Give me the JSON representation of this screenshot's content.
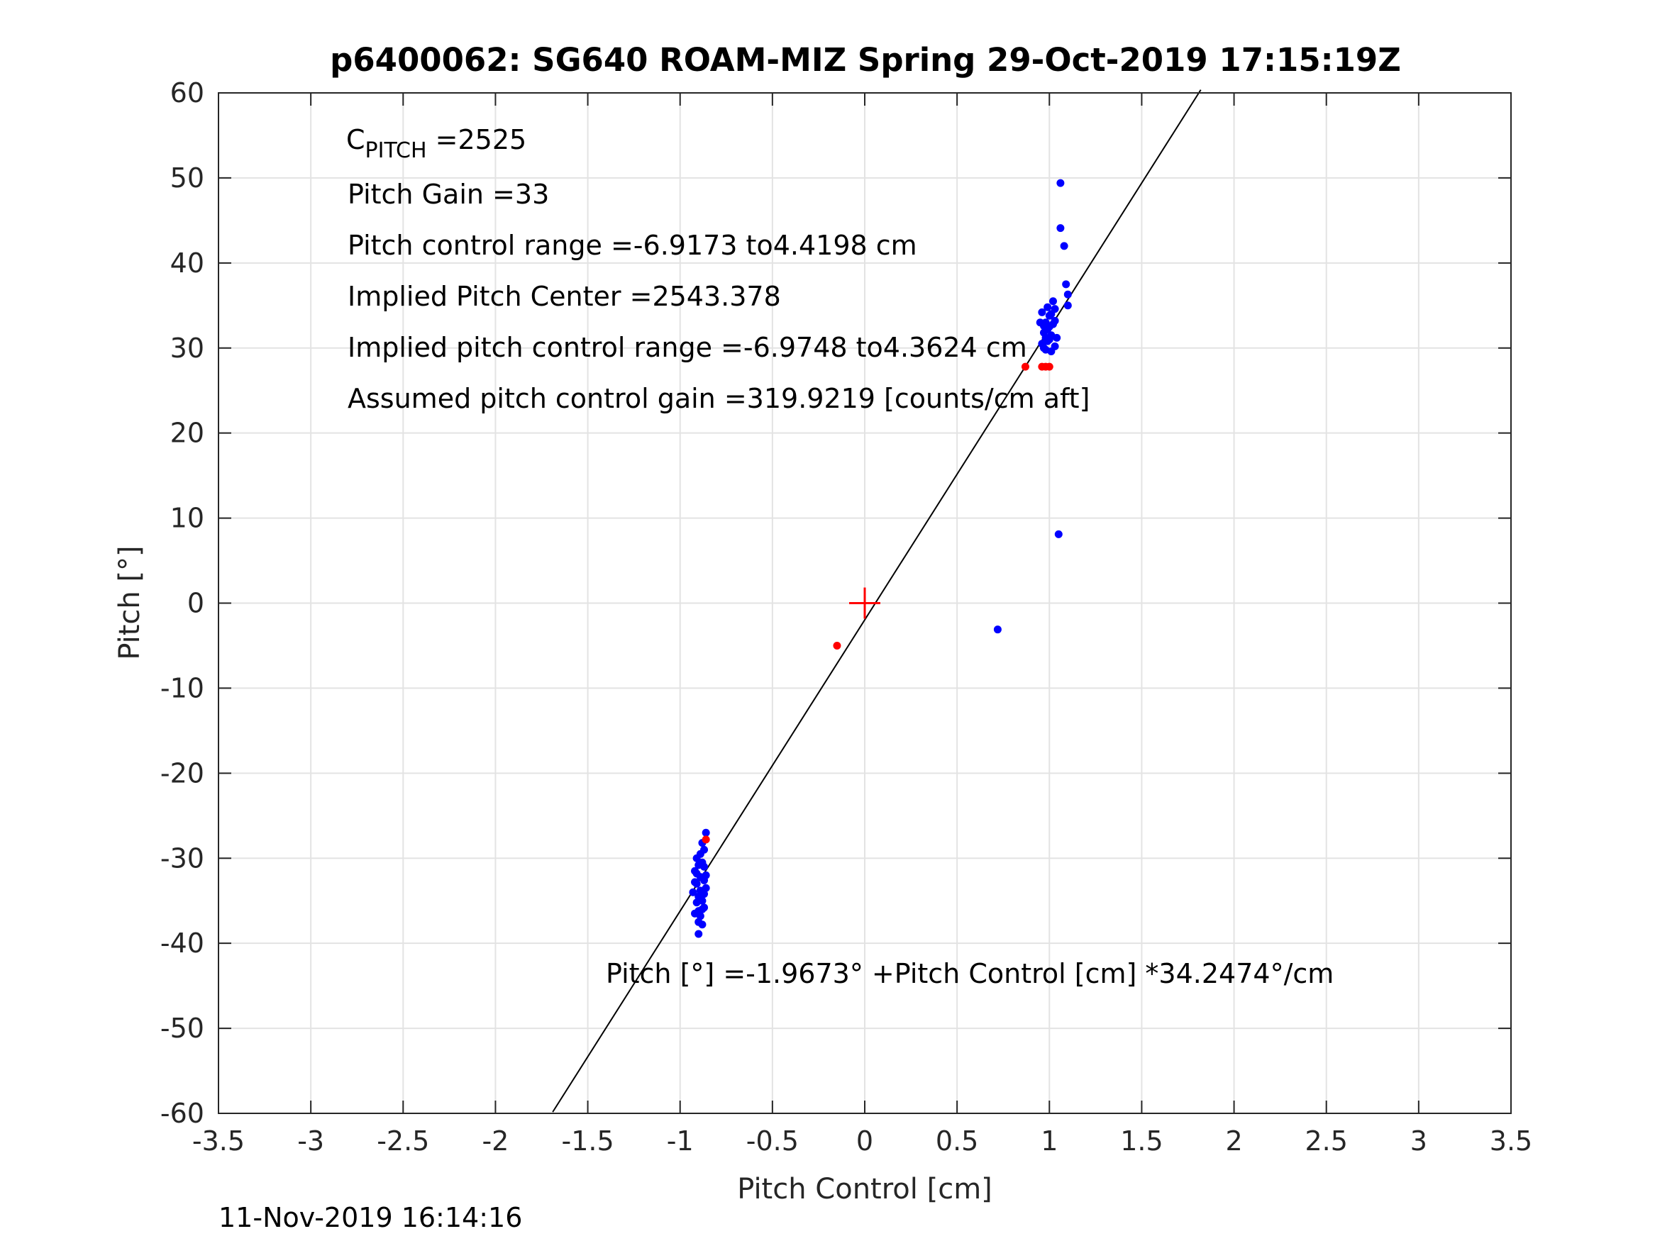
{
  "chart_data": {
    "type": "scatter",
    "title": "p6400062: SG640 ROAM-MIZ Spring 29-Oct-2019 17:15:19Z",
    "xlabel": "Pitch Control [cm]",
    "ylabel": "Pitch [°]",
    "xlim": [
      -3.5,
      3.5
    ],
    "ylim": [
      -60,
      60
    ],
    "xticks": [
      -3.5,
      -3,
      -2.5,
      -2,
      -1.5,
      -1,
      -0.5,
      0,
      0.5,
      1,
      1.5,
      2,
      2.5,
      3,
      3.5
    ],
    "xtick_labels": [
      "-3.5",
      "-3",
      "-2.5",
      "-2",
      "-1.5",
      "-1",
      "-0.5",
      "0",
      "0.5",
      "1",
      "1.5",
      "2",
      "2.5",
      "3",
      "3.5"
    ],
    "yticks": [
      -60,
      -50,
      -40,
      -30,
      -20,
      -10,
      0,
      10,
      20,
      30,
      40,
      50,
      60
    ],
    "ytick_labels": [
      "-60",
      "-50",
      "-40",
      "-30",
      "-20",
      "-10",
      "0",
      "10",
      "20",
      "30",
      "40",
      "50",
      "60"
    ],
    "grid": true,
    "colors": {
      "blue_points": "#0000ff",
      "red_points": "#ff0000",
      "fit_line": "#000000",
      "center_marker": "#ff0000",
      "grid": "#e3e3e3",
      "axes": "#262626"
    },
    "series": [
      {
        "color": "#0000ff",
        "marker": "dot",
        "points": [
          [
            -0.92,
            -31.5
          ],
          [
            -0.91,
            -33.0
          ],
          [
            -0.9,
            -34.5
          ],
          [
            -0.89,
            -32.2
          ],
          [
            -0.88,
            -30.5
          ],
          [
            -0.87,
            -35.8
          ],
          [
            -0.92,
            -36.5
          ],
          [
            -0.9,
            -37.5
          ],
          [
            -0.88,
            -36.0
          ],
          [
            -0.86,
            -33.5
          ],
          [
            -0.87,
            -31.0
          ],
          [
            -0.91,
            -30.0
          ],
          [
            -0.89,
            -29.5
          ],
          [
            -0.88,
            -28.2
          ],
          [
            -0.87,
            -29.0
          ],
          [
            -0.9,
            -38.9
          ],
          [
            -0.93,
            -34.0
          ],
          [
            -0.86,
            -32.0
          ],
          [
            -0.88,
            -37.8
          ],
          [
            -0.91,
            -35.2
          ],
          [
            -0.89,
            -36.8
          ],
          [
            -0.92,
            -32.8
          ],
          [
            -0.87,
            -34.2
          ],
          [
            -0.9,
            -30.8
          ],
          [
            -0.86,
            -27.0
          ],
          [
            -0.89,
            -33.8
          ],
          [
            -0.91,
            -31.8
          ],
          [
            -0.88,
            -35.0
          ],
          [
            -0.9,
            -36.2
          ],
          [
            -0.87,
            -32.6
          ],
          [
            0.96,
            30.5
          ],
          [
            0.97,
            31.8
          ],
          [
            0.98,
            33.0
          ],
          [
            0.99,
            32.2
          ],
          [
            1.0,
            31.0
          ],
          [
            1.01,
            34.0
          ],
          [
            1.02,
            32.8
          ],
          [
            1.03,
            30.2
          ],
          [
            0.98,
            29.8
          ],
          [
            1.0,
            33.8
          ],
          [
            0.96,
            34.2
          ],
          [
            0.99,
            30.8
          ],
          [
            1.01,
            31.5
          ],
          [
            1.03,
            33.2
          ],
          [
            0.97,
            32.6
          ],
          [
            1.02,
            35.5
          ],
          [
            1.04,
            31.2
          ],
          [
            0.98,
            31.2
          ],
          [
            1.0,
            32.5
          ],
          [
            1.01,
            29.6
          ],
          [
            0.95,
            33.0
          ],
          [
            1.03,
            34.6
          ],
          [
            0.97,
            30.0
          ],
          [
            0.99,
            34.8
          ],
          [
            1.06,
            49.4
          ],
          [
            1.06,
            44.1
          ],
          [
            1.08,
            42.0
          ],
          [
            1.09,
            37.5
          ],
          [
            1.1,
            36.3
          ],
          [
            1.1,
            35.0
          ],
          [
            1.05,
            8.1
          ],
          [
            0.72,
            -3.1
          ]
        ]
      },
      {
        "color": "#ff0000",
        "marker": "dot",
        "points": [
          [
            -0.15,
            -5.0
          ],
          [
            -0.86,
            -27.8
          ],
          [
            0.87,
            27.8
          ],
          [
            0.96,
            27.8
          ],
          [
            0.98,
            27.8
          ],
          [
            1.0,
            27.8
          ]
        ]
      }
    ],
    "fit_line": {
      "intercept": -1.9673,
      "slope": 34.2474,
      "x_range": [
        -1.69,
        1.82
      ]
    },
    "center_marker": {
      "x": 0,
      "y": 0,
      "symbol": "+"
    },
    "annotations": {
      "cpitch_main": "C",
      "cpitch_sub": "PITCH",
      "cpitch_value": " =2525",
      "pitch_gain": "Pitch Gain =33",
      "control_range": "Pitch control range =-6.9173 to4.4198 cm",
      "implied_center": "Implied Pitch Center =2543.378",
      "implied_range": "Implied pitch control range =-6.9748 to4.3624 cm",
      "assumed_gain": "Assumed pitch control gain =319.9219 [counts/cm aft]",
      "fit_equation": "Pitch [°] =-1.9673° +Pitch Control [cm] *34.2474°/cm"
    },
    "footer_timestamp": "11-Nov-2019 16:14:16"
  }
}
